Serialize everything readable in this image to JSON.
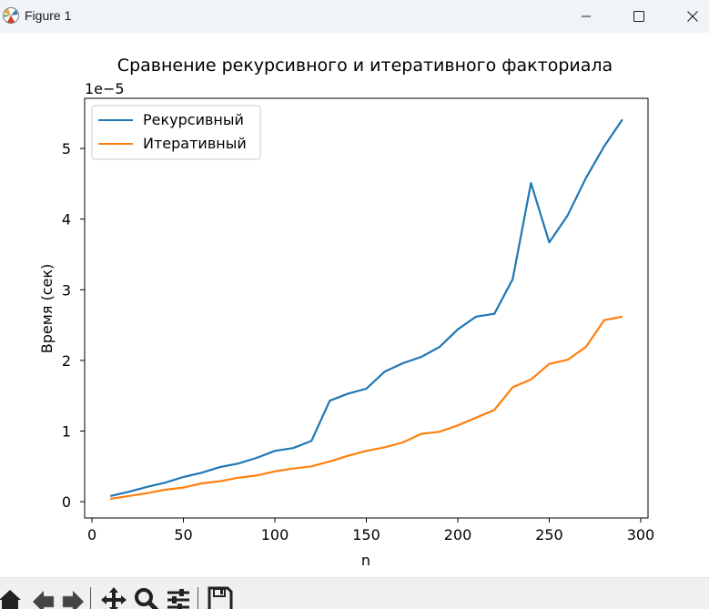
{
  "window": {
    "title": "Figure 1",
    "controls": [
      "minimize",
      "maximize",
      "close"
    ]
  },
  "toolbar": {
    "buttons": [
      {
        "name": "home",
        "icon": "home-icon"
      },
      {
        "name": "back",
        "icon": "back-arrow-icon"
      },
      {
        "name": "forward",
        "icon": "forward-arrow-icon"
      },
      {
        "name": "pan",
        "icon": "move-icon"
      },
      {
        "name": "zoom",
        "icon": "magnifier-icon"
      },
      {
        "name": "configure-subplots",
        "icon": "sliders-icon"
      },
      {
        "name": "save",
        "icon": "floppy-disk-icon"
      }
    ]
  },
  "chart_data": {
    "type": "line",
    "title": "Сравнение рекурсивного и итеративного факториала",
    "xlabel": "n",
    "ylabel": "Время (сек)",
    "y_offset_label": "1e−5",
    "xlim": [
      -4,
      304
    ],
    "ylim": [
      -0.23,
      5.71
    ],
    "xticks": [
      0,
      50,
      100,
      150,
      200,
      250,
      300
    ],
    "yticks": [
      0,
      1,
      2,
      3,
      4,
      5
    ],
    "grid": false,
    "legend_position": "upper left",
    "x": [
      10,
      20,
      30,
      40,
      50,
      60,
      70,
      80,
      90,
      100,
      110,
      120,
      130,
      140,
      150,
      160,
      170,
      180,
      190,
      200,
      210,
      220,
      230,
      240,
      250,
      260,
      270,
      280,
      290
    ],
    "series": [
      {
        "name": "Рекурсивный",
        "color": "#1f77b4",
        "values": [
          0.08,
          0.14,
          0.21,
          0.27,
          0.35,
          0.41,
          0.49,
          0.54,
          0.62,
          0.72,
          0.76,
          0.86,
          1.43,
          1.53,
          1.6,
          1.84,
          1.96,
          2.05,
          2.19,
          2.44,
          2.62,
          2.66,
          3.15,
          4.51,
          3.67,
          4.05,
          4.58,
          5.03,
          5.41
        ]
      },
      {
        "name": "Итеративный",
        "color": "#ff7f0e",
        "values": [
          0.04,
          0.08,
          0.12,
          0.17,
          0.2,
          0.26,
          0.29,
          0.34,
          0.37,
          0.43,
          0.47,
          0.5,
          0.57,
          0.65,
          0.72,
          0.77,
          0.84,
          0.96,
          0.99,
          1.08,
          1.19,
          1.3,
          1.62,
          1.73,
          1.95,
          2.01,
          2.19,
          2.57,
          2.62
        ]
      }
    ]
  }
}
